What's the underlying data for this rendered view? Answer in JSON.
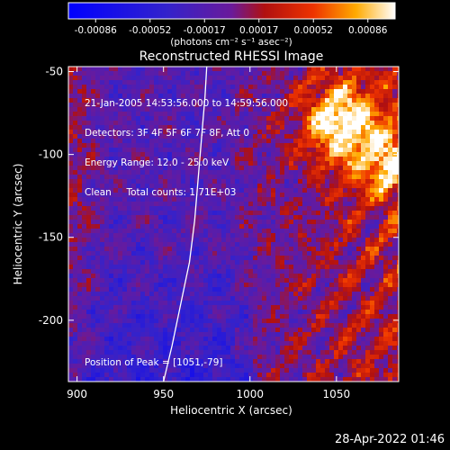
{
  "chart_data": {
    "type": "heatmap",
    "title": "Reconstructed RHESSI Image",
    "xlabel": "Heliocentric X (arcsec)",
    "ylabel": "Heliocentric Y (arcsec)",
    "xlim": [
      895,
      1086
    ],
    "ylim": [
      -237,
      -47
    ],
    "x_ticks": [
      900,
      950,
      1000,
      1050
    ],
    "y_ticks": [
      -50,
      -100,
      -150,
      -200
    ],
    "colorbar": {
      "ticks": [
        "-0.00086",
        "-0.00052",
        "-0.00017",
        "0.00017",
        "0.00052",
        "0.00086"
      ],
      "unit_label": "(photons cm⁻² s⁻¹ asec⁻²)",
      "range": [
        -0.00086,
        0.00086
      ]
    },
    "peak_label": "Position of Peak = [1051,-79]",
    "peak_position": [
      1051,
      -79
    ],
    "limb_curve": [
      [
        950,
        -237
      ],
      [
        955,
        -215
      ],
      [
        960,
        -190
      ],
      [
        965,
        -165
      ],
      [
        968,
        -140
      ],
      [
        970,
        -115
      ],
      [
        972,
        -90
      ],
      [
        974,
        -65
      ],
      [
        975,
        -47
      ]
    ],
    "grid": false
  },
  "info": {
    "time_range": "21-Jan-2005 14:53:56.000 to 14:59:56.000",
    "detectors": "Detectors: 3F 4F 5F 6F 7F 8F, Att 0",
    "energy": "Energy Range: 12.0 - 25.0 keV",
    "clean": "Clean     Total counts: 1.71E+03"
  },
  "footer": {
    "timestamp": "28-Apr-2022 01:46"
  }
}
